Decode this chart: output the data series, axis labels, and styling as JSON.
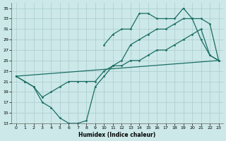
{
  "xlabel": "Humidex (Indice chaleur)",
  "xlim": [
    -0.5,
    23.5
  ],
  "ylim": [
    13,
    36
  ],
  "yticks": [
    13,
    15,
    17,
    19,
    21,
    23,
    25,
    27,
    29,
    31,
    33,
    35
  ],
  "xticks": [
    0,
    1,
    2,
    3,
    4,
    5,
    6,
    7,
    8,
    9,
    10,
    11,
    12,
    13,
    14,
    15,
    16,
    17,
    18,
    19,
    20,
    21,
    22,
    23
  ],
  "background_color": "#cce8e8",
  "grid_color": "#aacccc",
  "line_color": "#1a6e64",
  "line1_x": [
    0,
    1,
    2,
    3,
    4,
    5,
    6,
    7,
    8,
    9,
    10,
    11,
    12,
    13,
    14,
    15,
    16,
    17,
    18,
    19,
    20,
    21,
    22,
    23
  ],
  "line1_y": [
    22,
    21,
    20,
    17,
    16,
    14,
    13,
    13,
    13.5,
    20,
    22,
    24,
    24,
    25,
    25,
    26,
    27,
    27,
    28,
    29,
    30,
    31,
    26,
    25
  ],
  "line2_x": [
    0,
    1,
    2,
    3,
    4,
    5,
    6,
    7,
    8,
    9,
    10,
    11,
    12,
    13,
    14,
    15,
    16,
    17,
    18,
    19,
    20,
    21,
    22,
    23
  ],
  "line2_y": [
    22,
    21,
    20,
    18,
    19,
    20,
    21,
    21,
    21,
    21,
    23,
    24,
    25,
    28,
    29,
    30,
    31,
    31,
    32,
    33,
    33,
    33,
    32,
    25
  ],
  "line3_x": [
    0,
    23
  ],
  "line3_y": [
    22,
    25
  ],
  "line4_x": [
    10,
    11,
    12,
    13,
    14,
    15,
    16,
    17,
    18,
    19,
    20,
    21,
    22,
    23
  ],
  "line4_y": [
    28,
    30,
    31,
    31,
    34,
    34,
    33,
    33,
    33,
    35,
    33,
    29,
    26,
    25
  ]
}
